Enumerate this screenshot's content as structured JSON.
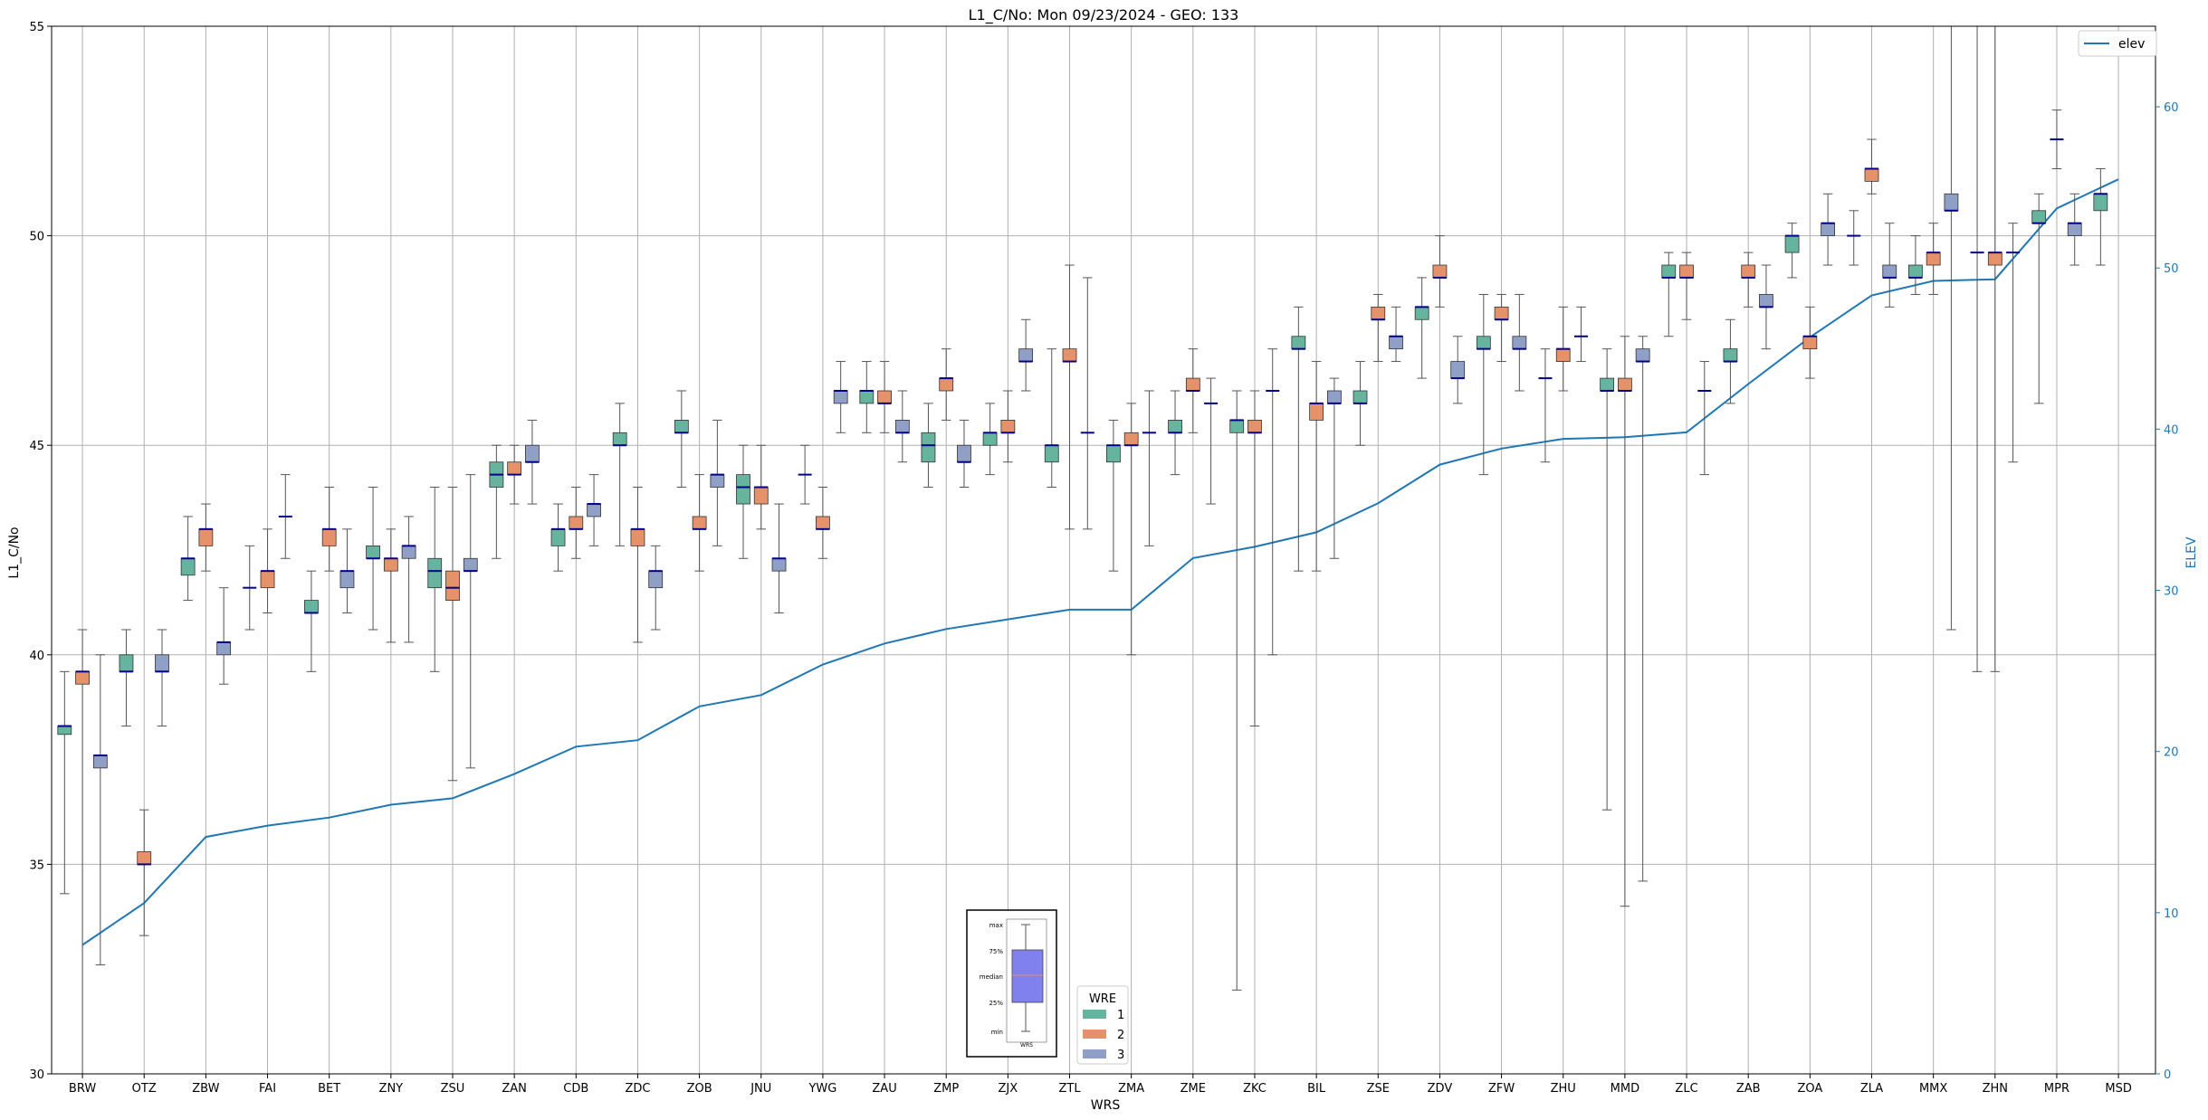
{
  "chart_data": {
    "type": "box",
    "title": "L1_C/No: Mon 09/23/2024 - GEO: 133",
    "xlabel": "WRS",
    "ylabel": "L1_C/No",
    "y2label": "ELEV",
    "ylim": [
      30,
      55
    ],
    "y2lim": [
      0,
      65
    ],
    "yticks": [
      30,
      35,
      40,
      45,
      50,
      55
    ],
    "y2ticks": [
      0,
      10,
      20,
      30,
      40,
      50,
      60
    ],
    "grid": true,
    "colors": {
      "wre1": "#66b49e",
      "wre2": "#e5926b",
      "wre3": "#8f9fc5",
      "elev": "#1f77b4",
      "median": "#00008b",
      "whisker": "#555555"
    },
    "legend_wre": {
      "title": "WRE",
      "items": [
        "1",
        "2",
        "3"
      ],
      "placement": "bottom-center"
    },
    "legend_elev": {
      "label": "elev",
      "placement": "top-right"
    },
    "inset": {
      "labels": [
        "max",
        "75%",
        "median",
        "25%",
        "min"
      ],
      "xlabel": "WRS"
    },
    "categories": [
      "BRW",
      "OTZ",
      "ZBW",
      "FAI",
      "BET",
      "ZNY",
      "ZSU",
      "ZAN",
      "CDB",
      "ZDC",
      "ZOB",
      "JNU",
      "YWG",
      "ZAU",
      "ZMP",
      "ZJX",
      "ZTL",
      "ZMA",
      "ZME",
      "ZKC",
      "BIL",
      "ZSE",
      "ZDV",
      "ZFW",
      "ZHU",
      "MMD",
      "ZLC",
      "ZAB",
      "ZOA",
      "ZLA",
      "MMX",
      "ZHN",
      "MPR",
      "MSD"
    ],
    "elev": [
      8.0,
      10.6,
      14.7,
      15.4,
      15.9,
      16.7,
      17.1,
      18.6,
      20.3,
      20.7,
      22.8,
      23.5,
      25.4,
      26.7,
      27.6,
      28.2,
      28.8,
      28.8,
      32.0,
      32.7,
      33.6,
      35.4,
      37.8,
      38.8,
      39.4,
      39.5,
      39.8,
      42.8,
      45.7,
      48.3,
      49.2,
      49.3,
      53.7,
      55.5
    ],
    "boxes": [
      {
        "cat": "BRW",
        "wre": 1,
        "min": 34.3,
        "q1": 38.1,
        "median": 38.3,
        "q3": 38.3,
        "max": 39.6
      },
      {
        "cat": "BRW",
        "wre": 2,
        "min": 30.0,
        "q1": 39.3,
        "median": 39.6,
        "q3": 39.6,
        "max": 40.6
      },
      {
        "cat": "BRW",
        "wre": 3,
        "min": 32.6,
        "q1": 37.3,
        "median": 37.6,
        "q3": 37.6,
        "max": 40.0
      },
      {
        "cat": "OTZ",
        "wre": 1,
        "min": 38.3,
        "q1": 39.6,
        "median": 39.6,
        "q3": 40.0,
        "max": 40.6
      },
      {
        "cat": "OTZ",
        "wre": 2,
        "min": 33.3,
        "q1": 35.0,
        "median": 35.0,
        "q3": 35.3,
        "max": 36.3
      },
      {
        "cat": "OTZ",
        "wre": 3,
        "min": 38.3,
        "q1": 39.6,
        "median": 39.6,
        "q3": 40.0,
        "max": 40.6
      },
      {
        "cat": "ZBW",
        "wre": 1,
        "min": 41.3,
        "q1": 41.9,
        "median": 42.3,
        "q3": 42.3,
        "max": 43.3
      },
      {
        "cat": "ZBW",
        "wre": 2,
        "min": 42.0,
        "q1": 42.6,
        "median": 43.0,
        "q3": 43.0,
        "max": 43.6
      },
      {
        "cat": "ZBW",
        "wre": 3,
        "min": 39.3,
        "q1": 40.0,
        "median": 40.3,
        "q3": 40.3,
        "max": 41.6
      },
      {
        "cat": "FAI",
        "wre": 1,
        "min": 40.6,
        "q1": 41.6,
        "median": 41.6,
        "q3": 41.6,
        "max": 42.6
      },
      {
        "cat": "FAI",
        "wre": 2,
        "min": 41.0,
        "q1": 41.6,
        "median": 42.0,
        "q3": 42.0,
        "max": 43.0
      },
      {
        "cat": "FAI",
        "wre": 3,
        "min": 42.3,
        "q1": 43.3,
        "median": 43.3,
        "q3": 43.3,
        "max": 44.3
      },
      {
        "cat": "BET",
        "wre": 1,
        "min": 39.6,
        "q1": 41.0,
        "median": 41.0,
        "q3": 41.3,
        "max": 42.0
      },
      {
        "cat": "BET",
        "wre": 2,
        "min": 42.0,
        "q1": 42.6,
        "median": 43.0,
        "q3": 43.0,
        "max": 44.0
      },
      {
        "cat": "BET",
        "wre": 3,
        "min": 41.0,
        "q1": 41.6,
        "median": 42.0,
        "q3": 42.0,
        "max": 43.0
      },
      {
        "cat": "ZNY",
        "wre": 1,
        "min": 40.6,
        "q1": 42.3,
        "median": 42.3,
        "q3": 42.6,
        "max": 44.0
      },
      {
        "cat": "ZNY",
        "wre": 2,
        "min": 40.3,
        "q1": 42.0,
        "median": 42.3,
        "q3": 42.3,
        "max": 43.0
      },
      {
        "cat": "ZNY",
        "wre": 3,
        "min": 40.3,
        "q1": 42.3,
        "median": 42.6,
        "q3": 42.6,
        "max": 43.3
      },
      {
        "cat": "ZSU",
        "wre": 1,
        "min": 39.6,
        "q1": 41.6,
        "median": 42.0,
        "q3": 42.3,
        "max": 44.0
      },
      {
        "cat": "ZSU",
        "wre": 2,
        "min": 37.0,
        "q1": 41.3,
        "median": 41.6,
        "q3": 42.0,
        "max": 44.0
      },
      {
        "cat": "ZSU",
        "wre": 3,
        "min": 37.3,
        "q1": 42.0,
        "median": 42.0,
        "q3": 42.3,
        "max": 44.3
      },
      {
        "cat": "ZAN",
        "wre": 1,
        "min": 42.3,
        "q1": 44.0,
        "median": 44.3,
        "q3": 44.6,
        "max": 45.0
      },
      {
        "cat": "ZAN",
        "wre": 2,
        "min": 43.6,
        "q1": 44.3,
        "median": 44.3,
        "q3": 44.6,
        "max": 45.0
      },
      {
        "cat": "ZAN",
        "wre": 3,
        "min": 43.6,
        "q1": 44.6,
        "median": 44.6,
        "q3": 45.0,
        "max": 45.6
      },
      {
        "cat": "CDB",
        "wre": 1,
        "min": 42.0,
        "q1": 42.6,
        "median": 43.0,
        "q3": 43.0,
        "max": 43.6
      },
      {
        "cat": "CDB",
        "wre": 2,
        "min": 42.3,
        "q1": 43.0,
        "median": 43.0,
        "q3": 43.3,
        "max": 44.0
      },
      {
        "cat": "CDB",
        "wre": 3,
        "min": 42.6,
        "q1": 43.3,
        "median": 43.6,
        "q3": 43.6,
        "max": 44.3
      },
      {
        "cat": "ZDC",
        "wre": 1,
        "min": 42.6,
        "q1": 45.0,
        "median": 45.0,
        "q3": 45.3,
        "max": 46.0
      },
      {
        "cat": "ZDC",
        "wre": 2,
        "min": 40.3,
        "q1": 42.6,
        "median": 43.0,
        "q3": 43.0,
        "max": 44.0
      },
      {
        "cat": "ZDC",
        "wre": 3,
        "min": 40.6,
        "q1": 41.6,
        "median": 42.0,
        "q3": 42.0,
        "max": 42.6
      },
      {
        "cat": "ZOB",
        "wre": 1,
        "min": 44.0,
        "q1": 45.3,
        "median": 45.3,
        "q3": 45.6,
        "max": 46.3
      },
      {
        "cat": "ZOB",
        "wre": 2,
        "min": 42.0,
        "q1": 43.0,
        "median": 43.0,
        "q3": 43.3,
        "max": 44.3
      },
      {
        "cat": "ZOB",
        "wre": 3,
        "min": 42.6,
        "q1": 44.0,
        "median": 44.3,
        "q3": 44.3,
        "max": 45.6
      },
      {
        "cat": "JNU",
        "wre": 1,
        "min": 42.3,
        "q1": 43.6,
        "median": 44.0,
        "q3": 44.3,
        "max": 45.0
      },
      {
        "cat": "JNU",
        "wre": 2,
        "min": 43.0,
        "q1": 43.6,
        "median": 44.0,
        "q3": 44.0,
        "max": 45.0
      },
      {
        "cat": "JNU",
        "wre": 3,
        "min": 41.0,
        "q1": 42.0,
        "median": 42.3,
        "q3": 42.3,
        "max": 43.6
      },
      {
        "cat": "YWG",
        "wre": 1,
        "min": 43.6,
        "q1": 44.3,
        "median": 44.3,
        "q3": 44.3,
        "max": 45.0
      },
      {
        "cat": "YWG",
        "wre": 2,
        "min": 42.3,
        "q1": 43.0,
        "median": 43.0,
        "q3": 43.3,
        "max": 44.0
      },
      {
        "cat": "YWG",
        "wre": 3,
        "min": 45.3,
        "q1": 46.0,
        "median": 46.3,
        "q3": 46.3,
        "max": 47.0
      },
      {
        "cat": "ZAU",
        "wre": 1,
        "min": 45.3,
        "q1": 46.0,
        "median": 46.3,
        "q3": 46.3,
        "max": 47.0
      },
      {
        "cat": "ZAU",
        "wre": 2,
        "min": 45.3,
        "q1": 46.0,
        "median": 46.0,
        "q3": 46.3,
        "max": 47.0
      },
      {
        "cat": "ZAU",
        "wre": 3,
        "min": 44.6,
        "q1": 45.3,
        "median": 45.3,
        "q3": 45.6,
        "max": 46.3
      },
      {
        "cat": "ZMP",
        "wre": 1,
        "min": 44.0,
        "q1": 44.6,
        "median": 45.0,
        "q3": 45.3,
        "max": 46.0
      },
      {
        "cat": "ZMP",
        "wre": 2,
        "min": 45.6,
        "q1": 46.3,
        "median": 46.6,
        "q3": 46.6,
        "max": 47.3
      },
      {
        "cat": "ZMP",
        "wre": 3,
        "min": 44.0,
        "q1": 44.6,
        "median": 44.6,
        "q3": 45.0,
        "max": 45.6
      },
      {
        "cat": "ZJX",
        "wre": 1,
        "min": 44.3,
        "q1": 45.0,
        "median": 45.3,
        "q3": 45.3,
        "max": 46.0
      },
      {
        "cat": "ZJX",
        "wre": 2,
        "min": 44.6,
        "q1": 45.3,
        "median": 45.3,
        "q3": 45.6,
        "max": 46.3
      },
      {
        "cat": "ZJX",
        "wre": 3,
        "min": 46.3,
        "q1": 47.0,
        "median": 47.0,
        "q3": 47.3,
        "max": 48.0
      },
      {
        "cat": "ZTL",
        "wre": 1,
        "min": 44.0,
        "q1": 44.6,
        "median": 45.0,
        "q3": 45.0,
        "max": 47.3
      },
      {
        "cat": "ZTL",
        "wre": 2,
        "min": 43.0,
        "q1": 47.0,
        "median": 47.0,
        "q3": 47.3,
        "max": 49.3
      },
      {
        "cat": "ZTL",
        "wre": 3,
        "min": 43.0,
        "q1": 45.3,
        "median": 45.3,
        "q3": 45.3,
        "max": 49.0
      },
      {
        "cat": "ZMA",
        "wre": 1,
        "min": 42.0,
        "q1": 44.6,
        "median": 45.0,
        "q3": 45.0,
        "max": 45.6
      },
      {
        "cat": "ZMA",
        "wre": 2,
        "min": 40.0,
        "q1": 45.0,
        "median": 45.0,
        "q3": 45.3,
        "max": 46.0
      },
      {
        "cat": "ZMA",
        "wre": 3,
        "min": 42.6,
        "q1": 45.3,
        "median": 45.3,
        "q3": 45.3,
        "max": 46.3
      },
      {
        "cat": "ZME",
        "wre": 1,
        "min": 44.3,
        "q1": 45.3,
        "median": 45.3,
        "q3": 45.6,
        "max": 46.3
      },
      {
        "cat": "ZME",
        "wre": 2,
        "min": 45.3,
        "q1": 46.3,
        "median": 46.3,
        "q3": 46.6,
        "max": 47.3
      },
      {
        "cat": "ZME",
        "wre": 3,
        "min": 43.6,
        "q1": 46.0,
        "median": 46.0,
        "q3": 46.0,
        "max": 46.6
      },
      {
        "cat": "ZKC",
        "wre": 1,
        "min": 32.0,
        "q1": 45.3,
        "median": 45.6,
        "q3": 45.6,
        "max": 46.3
      },
      {
        "cat": "ZKC",
        "wre": 2,
        "min": 38.3,
        "q1": 45.3,
        "median": 45.3,
        "q3": 45.6,
        "max": 46.3
      },
      {
        "cat": "ZKC",
        "wre": 3,
        "min": 40.0,
        "q1": 46.3,
        "median": 46.3,
        "q3": 46.3,
        "max": 47.3
      },
      {
        "cat": "BIL",
        "wre": 1,
        "min": 42.0,
        "q1": 47.3,
        "median": 47.3,
        "q3": 47.6,
        "max": 48.3
      },
      {
        "cat": "BIL",
        "wre": 2,
        "min": 42.0,
        "q1": 45.6,
        "median": 46.0,
        "q3": 46.0,
        "max": 47.0
      },
      {
        "cat": "BIL",
        "wre": 3,
        "min": 42.3,
        "q1": 46.0,
        "median": 46.0,
        "q3": 46.3,
        "max": 46.6
      },
      {
        "cat": "ZSE",
        "wre": 1,
        "min": 45.0,
        "q1": 46.0,
        "median": 46.0,
        "q3": 46.3,
        "max": 47.0
      },
      {
        "cat": "ZSE",
        "wre": 2,
        "min": 47.0,
        "q1": 48.0,
        "median": 48.0,
        "q3": 48.3,
        "max": 48.6
      },
      {
        "cat": "ZSE",
        "wre": 3,
        "min": 47.0,
        "q1": 47.3,
        "median": 47.6,
        "q3": 47.6,
        "max": 48.3
      },
      {
        "cat": "ZDV",
        "wre": 1,
        "min": 46.6,
        "q1": 48.0,
        "median": 48.3,
        "q3": 48.3,
        "max": 49.0
      },
      {
        "cat": "ZDV",
        "wre": 2,
        "min": 48.3,
        "q1": 49.0,
        "median": 49.0,
        "q3": 49.3,
        "max": 50.0
      },
      {
        "cat": "ZDV",
        "wre": 3,
        "min": 46.0,
        "q1": 46.6,
        "median": 46.6,
        "q3": 47.0,
        "max": 47.6
      },
      {
        "cat": "ZFW",
        "wre": 1,
        "min": 44.3,
        "q1": 47.3,
        "median": 47.3,
        "q3": 47.6,
        "max": 48.6
      },
      {
        "cat": "ZFW",
        "wre": 2,
        "min": 47.0,
        "q1": 48.0,
        "median": 48.0,
        "q3": 48.3,
        "max": 48.6
      },
      {
        "cat": "ZFW",
        "wre": 3,
        "min": 46.3,
        "q1": 47.3,
        "median": 47.3,
        "q3": 47.6,
        "max": 48.6
      },
      {
        "cat": "ZHU",
        "wre": 1,
        "min": 44.6,
        "q1": 46.6,
        "median": 46.6,
        "q3": 46.6,
        "max": 47.3
      },
      {
        "cat": "ZHU",
        "wre": 2,
        "min": 46.3,
        "q1": 47.0,
        "median": 47.3,
        "q3": 47.3,
        "max": 48.3
      },
      {
        "cat": "ZHU",
        "wre": 3,
        "min": 47.0,
        "q1": 47.6,
        "median": 47.6,
        "q3": 47.6,
        "max": 48.3
      },
      {
        "cat": "MMD",
        "wre": 1,
        "min": 36.3,
        "q1": 46.3,
        "median": 46.3,
        "q3": 46.6,
        "max": 47.3
      },
      {
        "cat": "MMD",
        "wre": 2,
        "min": 34.0,
        "q1": 46.3,
        "median": 46.3,
        "q3": 46.6,
        "max": 47.6
      },
      {
        "cat": "MMD",
        "wre": 3,
        "min": 34.6,
        "q1": 47.0,
        "median": 47.0,
        "q3": 47.3,
        "max": 47.6
      },
      {
        "cat": "ZLC",
        "wre": 1,
        "min": 47.6,
        "q1": 49.0,
        "median": 49.0,
        "q3": 49.3,
        "max": 49.6
      },
      {
        "cat": "ZLC",
        "wre": 2,
        "min": 48.0,
        "q1": 49.0,
        "median": 49.0,
        "q3": 49.3,
        "max": 49.6
      },
      {
        "cat": "ZLC",
        "wre": 3,
        "min": 44.3,
        "q1": 46.3,
        "median": 46.3,
        "q3": 46.3,
        "max": 47.0
      },
      {
        "cat": "ZAB",
        "wre": 1,
        "min": 46.0,
        "q1": 47.0,
        "median": 47.0,
        "q3": 47.3,
        "max": 48.0
      },
      {
        "cat": "ZAB",
        "wre": 2,
        "min": 48.3,
        "q1": 49.0,
        "median": 49.0,
        "q3": 49.3,
        "max": 49.6
      },
      {
        "cat": "ZAB",
        "wre": 3,
        "min": 47.3,
        "q1": 48.3,
        "median": 48.3,
        "q3": 48.6,
        "max": 49.3
      },
      {
        "cat": "ZOA",
        "wre": 1,
        "min": 49.0,
        "q1": 49.6,
        "median": 50.0,
        "q3": 50.0,
        "max": 50.3
      },
      {
        "cat": "ZOA",
        "wre": 2,
        "min": 46.6,
        "q1": 47.3,
        "median": 47.6,
        "q3": 47.6,
        "max": 48.3
      },
      {
        "cat": "ZOA",
        "wre": 3,
        "min": 49.3,
        "q1": 50.0,
        "median": 50.3,
        "q3": 50.3,
        "max": 51.0
      },
      {
        "cat": "ZLA",
        "wre": 1,
        "min": 49.3,
        "q1": 50.0,
        "median": 50.0,
        "q3": 50.0,
        "max": 50.6
      },
      {
        "cat": "ZLA",
        "wre": 2,
        "min": 51.0,
        "q1": 51.3,
        "median": 51.6,
        "q3": 51.6,
        "max": 52.3
      },
      {
        "cat": "ZLA",
        "wre": 3,
        "min": 48.3,
        "q1": 49.0,
        "median": 49.0,
        "q3": 49.3,
        "max": 50.3
      },
      {
        "cat": "MMX",
        "wre": 1,
        "min": 48.6,
        "q1": 49.0,
        "median": 49.0,
        "q3": 49.3,
        "max": 50.0
      },
      {
        "cat": "MMX",
        "wre": 2,
        "min": 48.6,
        "q1": 49.3,
        "median": 49.6,
        "q3": 49.6,
        "max": 50.3
      },
      {
        "cat": "MMX",
        "wre": 3,
        "min": 40.6,
        "q1": 50.6,
        "median": 50.6,
        "q3": 51.0,
        "max": 55.0
      },
      {
        "cat": "ZHN",
        "wre": 1,
        "min": 39.6,
        "q1": 49.6,
        "median": 49.6,
        "q3": 49.6,
        "max": 55.0
      },
      {
        "cat": "ZHN",
        "wre": 2,
        "min": 39.6,
        "q1": 49.3,
        "median": 49.6,
        "q3": 49.6,
        "max": 55.0
      },
      {
        "cat": "ZHN",
        "wre": 3,
        "min": 44.6,
        "q1": 49.6,
        "median": 49.6,
        "q3": 49.6,
        "max": 50.3
      },
      {
        "cat": "MPR",
        "wre": 1,
        "min": 46.0,
        "q1": 50.3,
        "median": 50.3,
        "q3": 50.6,
        "max": 51.0
      },
      {
        "cat": "MPR",
        "wre": 2,
        "min": 51.6,
        "q1": 52.3,
        "median": 52.3,
        "q3": 52.3,
        "max": 53.0
      },
      {
        "cat": "MPR",
        "wre": 3,
        "min": 49.3,
        "q1": 50.0,
        "median": 50.3,
        "q3": 50.3,
        "max": 51.0
      },
      {
        "cat": "MSD",
        "wre": 1,
        "min": 49.3,
        "q1": 50.6,
        "median": 51.0,
        "q3": 51.0,
        "max": 51.6
      }
    ]
  }
}
